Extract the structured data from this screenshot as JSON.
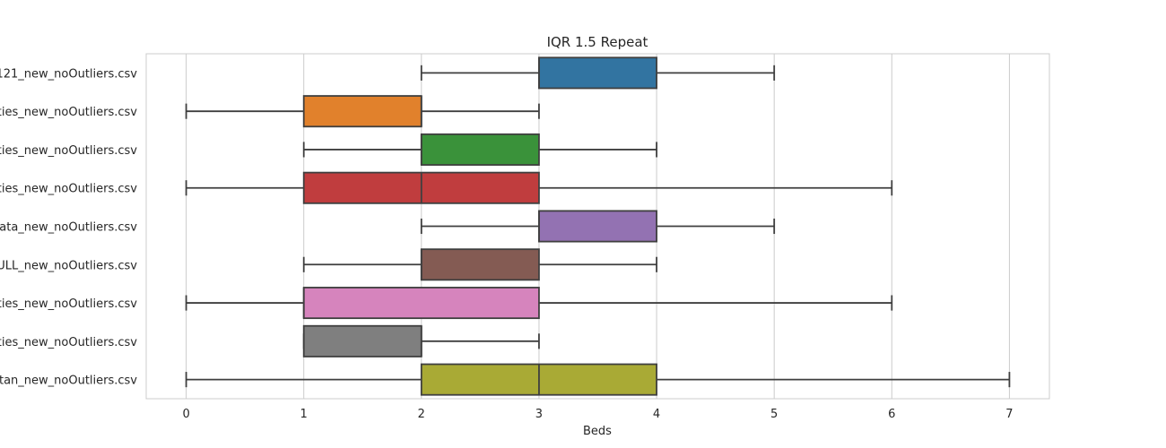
{
  "chart_data": {
    "type": "boxplot",
    "title": "IQR 1.5 Repeat",
    "xlabel": "Beds",
    "ylabel": "",
    "xlim": [
      -0.34,
      7.34
    ],
    "xticks": [
      0,
      1,
      2,
      3,
      4,
      5,
      6,
      7
    ],
    "orientation": "horizontal",
    "grid": "vertical",
    "categories": [
      "121_new_noOutliers.csv",
      "rties_new_noOutliers.csv",
      "rties_new_noOutliers.csv",
      "rties_new_noOutliers.csv",
      "data_new_noOutliers.csv",
      "ULL_new_noOutliers.csv",
      "rties_new_noOutliers.csv",
      "rties_new_noOutliers.csv",
      "stan_new_noOutliers.csv"
    ],
    "boxes": [
      {
        "whisker_low": 2,
        "q1": 3,
        "median": 3,
        "q3": 4,
        "whisker_high": 5,
        "color": "#3274a1"
      },
      {
        "whisker_low": 0,
        "q1": 1,
        "median": 2,
        "q3": 2,
        "whisker_high": 3,
        "color": "#e1812c"
      },
      {
        "whisker_low": 1,
        "q1": 2,
        "median": 2,
        "q3": 3,
        "whisker_high": 4,
        "color": "#3a923a"
      },
      {
        "whisker_low": 0,
        "q1": 1,
        "median": 2,
        "q3": 3,
        "whisker_high": 6,
        "color": "#c03d3e"
      },
      {
        "whisker_low": 2,
        "q1": 3,
        "median": 3,
        "q3": 4,
        "whisker_high": 5,
        "color": "#9372b2"
      },
      {
        "whisker_low": 1,
        "q1": 2,
        "median": 2,
        "q3": 3,
        "whisker_high": 4,
        "color": "#845b53"
      },
      {
        "whisker_low": 0,
        "q1": 1,
        "median": 1,
        "q3": 3,
        "whisker_high": 6,
        "color": "#d684bd"
      },
      {
        "whisker_low": 1,
        "q1": 1,
        "median": 2,
        "q3": 2,
        "whisker_high": 3,
        "color": "#7f7f7f"
      },
      {
        "whisker_low": 0,
        "q1": 2,
        "median": 3,
        "q3": 4,
        "whisker_high": 7,
        "color": "#a9aa35"
      }
    ]
  }
}
